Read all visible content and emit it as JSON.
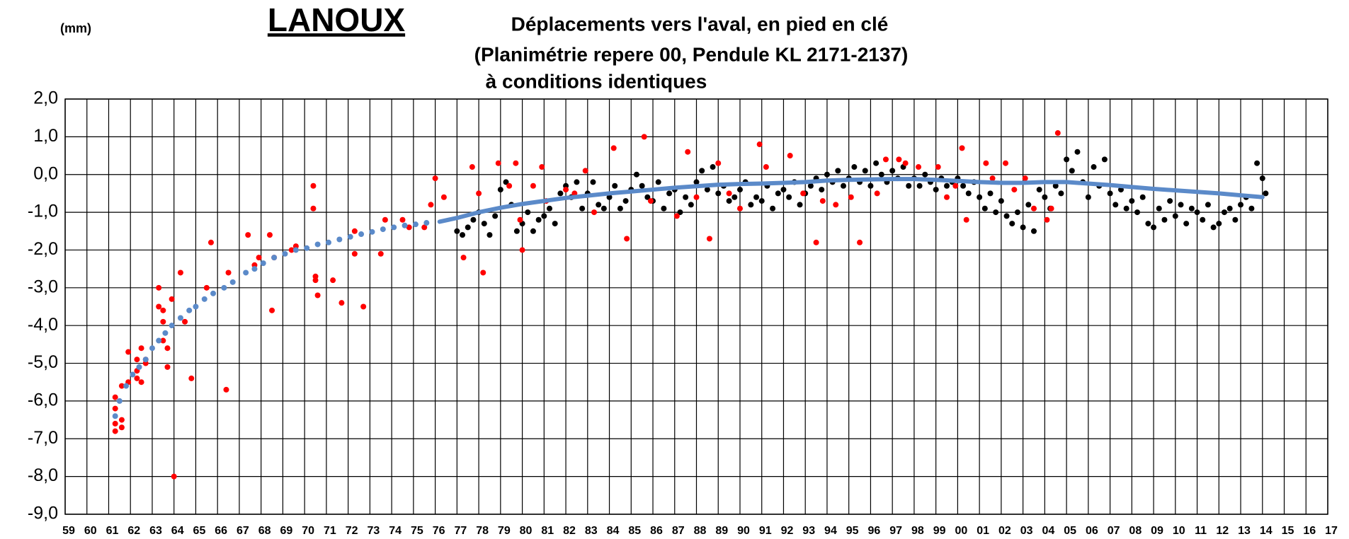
{
  "chart_data": {
    "type": "scatter",
    "title": "LANOUX",
    "subtitle": [
      "Déplacements vers l'aval, en pied en clé",
      "(Planimétrie repere 00, Pendule KL 2171-2137)",
      "à conditions identiques"
    ],
    "ylabel": "(mm)",
    "xlim": [
      1959,
      2017
    ],
    "ylim": [
      -9,
      2
    ],
    "grid": true,
    "yticks": [
      {
        "value": 2,
        "label": "2,0"
      },
      {
        "value": 1,
        "label": "1,0"
      },
      {
        "value": 0,
        "label": "0,0"
      },
      {
        "value": -1,
        "label": "-1,0"
      },
      {
        "value": -2,
        "label": "-2,0"
      },
      {
        "value": -3,
        "label": "-3,0"
      },
      {
        "value": -4,
        "label": "-4,0"
      },
      {
        "value": -5,
        "label": "-5,0"
      },
      {
        "value": -6,
        "label": "-6,0"
      },
      {
        "value": -7,
        "label": "-7,0"
      },
      {
        "value": -8,
        "label": "-8,0"
      },
      {
        "value": -9,
        "label": "-9,0"
      }
    ],
    "xticks": [
      {
        "value": 1959,
        "label": "59"
      },
      {
        "value": 1960,
        "label": "60"
      },
      {
        "value": 1961,
        "label": "61"
      },
      {
        "value": 1962,
        "label": "62"
      },
      {
        "value": 1963,
        "label": "63"
      },
      {
        "value": 1964,
        "label": "64"
      },
      {
        "value": 1965,
        "label": "65"
      },
      {
        "value": 1966,
        "label": "66"
      },
      {
        "value": 1967,
        "label": "67"
      },
      {
        "value": 1968,
        "label": "68"
      },
      {
        "value": 1969,
        "label": "69"
      },
      {
        "value": 1970,
        "label": "70"
      },
      {
        "value": 1971,
        "label": "71"
      },
      {
        "value": 1972,
        "label": "72"
      },
      {
        "value": 1973,
        "label": "73"
      },
      {
        "value": 1974,
        "label": "74"
      },
      {
        "value": 1975,
        "label": "75"
      },
      {
        "value": 1976,
        "label": "76"
      },
      {
        "value": 1977,
        "label": "77"
      },
      {
        "value": 1978,
        "label": "78"
      },
      {
        "value": 1979,
        "label": "79"
      },
      {
        "value": 1980,
        "label": "80"
      },
      {
        "value": 1981,
        "label": "81"
      },
      {
        "value": 1982,
        "label": "82"
      },
      {
        "value": 1983,
        "label": "83"
      },
      {
        "value": 1984,
        "label": "84"
      },
      {
        "value": 1985,
        "label": "85"
      },
      {
        "value": 1986,
        "label": "86"
      },
      {
        "value": 1987,
        "label": "87"
      },
      {
        "value": 1988,
        "label": "88"
      },
      {
        "value": 1989,
        "label": "89"
      },
      {
        "value": 1990,
        "label": "90"
      },
      {
        "value": 1991,
        "label": "91"
      },
      {
        "value": 1992,
        "label": "92"
      },
      {
        "value": 1993,
        "label": "93"
      },
      {
        "value": 1994,
        "label": "94"
      },
      {
        "value": 1995,
        "label": "95"
      },
      {
        "value": 1996,
        "label": "96"
      },
      {
        "value": 1997,
        "label": "97"
      },
      {
        "value": 1998,
        "label": "98"
      },
      {
        "value": 1999,
        "label": "99"
      },
      {
        "value": 2000,
        "label": "00"
      },
      {
        "value": 2001,
        "label": "01"
      },
      {
        "value": 2002,
        "label": "02"
      },
      {
        "value": 2003,
        "label": "03"
      },
      {
        "value": 2004,
        "label": "04"
      },
      {
        "value": 2005,
        "label": "05"
      },
      {
        "value": 2006,
        "label": "06"
      },
      {
        "value": 2007,
        "label": "07"
      },
      {
        "value": 2008,
        "label": "08"
      },
      {
        "value": 2009,
        "label": "09"
      },
      {
        "value": 2010,
        "label": "10"
      },
      {
        "value": 2011,
        "label": "11"
      },
      {
        "value": 2012,
        "label": "12"
      },
      {
        "value": 2013,
        "label": "13"
      },
      {
        "value": 2014,
        "label": "14"
      },
      {
        "value": 2015,
        "label": "15"
      },
      {
        "value": 2016,
        "label": "16"
      },
      {
        "value": 2017,
        "label": "17"
      }
    ],
    "series": [
      {
        "color": "#000000",
        "mode": "markers",
        "x": [
          1977,
          1977.25,
          1977.5,
          1977.75,
          1978,
          1978.25,
          1978.5,
          1978.75,
          1979,
          1979.25,
          1979.5,
          1979.75,
          1980,
          1980.25,
          1980.5,
          1980.75,
          1981,
          1981.25,
          1981.5,
          1981.75,
          1982,
          1982.25,
          1982.5,
          1982.75,
          1983,
          1983.25,
          1983.5,
          1983.75,
          1984,
          1984.25,
          1984.5,
          1984.75,
          1985,
          1985.25,
          1985.5,
          1985.75,
          1986,
          1986.25,
          1986.5,
          1986.75,
          1987,
          1987.25,
          1987.5,
          1987.75,
          1988,
          1988.25,
          1988.5,
          1988.75,
          1989,
          1989.25,
          1989.5,
          1989.75,
          1990,
          1990.25,
          1990.5,
          1990.75,
          1991,
          1991.25,
          1991.5,
          1991.75,
          1992,
          1992.25,
          1992.5,
          1992.75,
          1993,
          1993.25,
          1993.5,
          1993.75,
          1994,
          1994.25,
          1994.5,
          1994.75,
          1995,
          1995.25,
          1995.5,
          1995.75,
          1996,
          1996.25,
          1996.5,
          1996.75,
          1997,
          1997.25,
          1997.5,
          1997.75,
          1998,
          1998.25,
          1998.5,
          1998.75,
          1999,
          1999.25,
          1999.5,
          1999.75,
          2000,
          2000.25,
          2000.5,
          2000.75,
          2001,
          2001.25,
          2001.5,
          2001.75,
          2002,
          2002.25,
          2002.5,
          2002.75,
          2003,
          2003.25,
          2003.5,
          2003.75,
          2004,
          2004.25,
          2004.5,
          2004.75,
          2005,
          2005.25,
          2005.5,
          2005.75,
          2006,
          2006.25,
          2006.5,
          2006.75,
          2007,
          2007.25,
          2007.5,
          2007.75,
          2008,
          2008.25,
          2008.5,
          2008.75,
          2009,
          2009.25,
          2009.5,
          2009.75,
          2010,
          2010.25,
          2010.5,
          2010.75,
          2011,
          2011.25,
          2011.5,
          2011.75,
          2012,
          2012.25,
          2012.5,
          2012.75,
          2013,
          2013.25,
          2013.5,
          2013.75,
          2014,
          2014.15
        ],
        "values": [
          -1.5,
          -1.6,
          -1.4,
          -1.2,
          -1.0,
          -1.3,
          -1.6,
          -1.1,
          -0.4,
          -0.2,
          -0.8,
          -1.5,
          -1.3,
          -1.0,
          -1.5,
          -1.2,
          -1.1,
          -0.9,
          -1.3,
          -0.5,
          -0.3,
          -0.6,
          -0.2,
          -0.9,
          -0.5,
          -0.2,
          -0.8,
          -0.9,
          -0.6,
          -0.3,
          -0.9,
          -0.7,
          -0.4,
          0.0,
          -0.3,
          -0.6,
          -0.7,
          -0.2,
          -0.9,
          -0.5,
          -0.4,
          -1.0,
          -0.6,
          -0.8,
          -0.2,
          0.1,
          -0.4,
          0.2,
          -0.5,
          -0.3,
          -0.7,
          -0.6,
          -0.4,
          -0.2,
          -0.8,
          -0.6,
          -0.7,
          -0.3,
          -0.9,
          -0.5,
          -0.4,
          -0.6,
          -0.2,
          -0.8,
          -0.5,
          -0.3,
          -0.1,
          -0.4,
          0.0,
          -0.2,
          0.1,
          -0.3,
          -0.1,
          0.2,
          -0.2,
          0.1,
          -0.3,
          0.3,
          0.0,
          -0.2,
          0.1,
          -0.1,
          0.2,
          -0.3,
          -0.1,
          -0.3,
          0.0,
          -0.2,
          -0.4,
          -0.1,
          -0.3,
          -0.2,
          -0.1,
          -0.3,
          -0.5,
          -0.2,
          -0.6,
          -0.9,
          -0.5,
          -1.0,
          -0.7,
          -1.1,
          -1.3,
          -1.0,
          -1.4,
          -0.8,
          -1.5,
          -0.4,
          -0.6,
          -0.9,
          -0.3,
          -0.5,
          0.4,
          0.1,
          0.6,
          -0.2,
          -0.6,
          0.2,
          -0.3,
          0.4,
          -0.5,
          -0.8,
          -0.4,
          -0.9,
          -0.7,
          -1.0,
          -0.6,
          -1.3,
          -1.4,
          -0.9,
          -1.2,
          -0.7,
          -1.1,
          -0.8,
          -1.3,
          -0.9,
          -1.0,
          -1.2,
          -0.8,
          -1.4,
          -1.3,
          -1.0,
          -0.9,
          -1.2,
          -0.8,
          -0.6,
          -0.9,
          0.3,
          -0.1,
          -0.5
        ]
      },
      {
        "color": "#ff0000",
        "mode": "markers",
        "x": [
          1961.3,
          1961.3,
          1961.3,
          1961.3,
          1961.6,
          1961.6,
          1961.6,
          1961.9,
          1961.9,
          1962.3,
          1962.3,
          1962.3,
          1962.5,
          1962.5,
          1962.7,
          1962.7,
          1963.3,
          1963.3,
          1963.5,
          1963.5,
          1963.5,
          1963.7,
          1963.7,
          1963.9,
          1964.0,
          1964.3,
          1964.5,
          1964.8,
          1965.5,
          1965.7,
          1966.4,
          1966.5,
          1967.4,
          1967.7,
          1967.9,
          1968.4,
          1968.5,
          1968.6,
          1969.4,
          1969.6,
          1970.4,
          1970.4,
          1970.5,
          1970.5,
          1970.6,
          1971.3,
          1971.7,
          1972.3,
          1972.3,
          1972.7,
          1973.5,
          1973.7,
          1974.5,
          1974.8,
          1975.5,
          1975.8,
          1976.0,
          1976.4,
          1977.3,
          1977.7,
          1978.0,
          1978.2,
          1978.9,
          1979.4,
          1979.7,
          1979.9,
          1980.0,
          1980.5,
          1980.9,
          1981.1,
          1982.0,
          1982.4,
          1982.9,
          1983.3,
          1984.2,
          1984.8,
          1985.6,
          1985.9,
          1987.1,
          1987.6,
          1988.0,
          1988.6,
          1989.0,
          1989.5,
          1990.0,
          1990.9,
          1991.2,
          1992.3,
          1992.9,
          1993.5,
          1993.8,
          1994.4,
          1995.1,
          1995.5,
          1996.3,
          1996.7,
          1997.3,
          1997.6,
          1998.2,
          1999.1,
          1999.5,
          1999.9,
          2000.2,
          2000.4,
          2001.3,
          2001.6,
          2002.2,
          2002.6,
          2003.1,
          2003.5,
          2004.1,
          2004.3,
          2004.6
        ],
        "values": [
          -5.9,
          -6.2,
          -6.8,
          -6.6,
          -6.5,
          -5.6,
          -6.7,
          -4.7,
          -5.5,
          -4.9,
          -5.2,
          -5.4,
          -4.6,
          -5.5,
          -5.0,
          -4.9,
          -3.0,
          -3.5,
          -3.9,
          -3.6,
          -4.4,
          -4.6,
          -5.1,
          -3.3,
          -8.0,
          -2.6,
          -3.9,
          -5.4,
          -3.0,
          -1.8,
          -5.7,
          -2.6,
          -1.6,
          -2.4,
          -2.2,
          -1.6,
          -3.6,
          -2.2,
          -2.0,
          -1.9,
          -0.3,
          -0.9,
          -2.8,
          -2.7,
          -3.2,
          -2.8,
          -3.4,
          -2.1,
          -1.5,
          -3.5,
          -2.1,
          -1.2,
          -1.2,
          -1.4,
          -1.4,
          -0.8,
          -0.1,
          -0.6,
          -2.2,
          0.2,
          -0.5,
          -2.6,
          0.3,
          -0.3,
          0.3,
          -1.2,
          -2.0,
          -0.3,
          0.2,
          -0.7,
          -0.4,
          -0.5,
          0.1,
          -1.0,
          0.7,
          -1.7,
          1.0,
          -0.7,
          -1.1,
          0.6,
          -0.6,
          -1.7,
          0.3,
          -0.5,
          -0.9,
          0.8,
          0.2,
          0.5,
          -0.5,
          -1.8,
          -0.7,
          -0.8,
          -0.6,
          -1.8,
          -0.5,
          0.4,
          0.4,
          0.3,
          0.2,
          0.2,
          -0.6,
          -0.3,
          0.7,
          -1.2,
          0.3,
          -0.1,
          0.3,
          -0.4,
          -0.1,
          -0.9,
          -1.2,
          -0.9,
          1.1
        ]
      },
      {
        "color": "#5b8ac9",
        "mode": "markers",
        "x": [
          1961.3,
          1961.5,
          1961.8,
          1962.1,
          1962.4,
          1962.7,
          1963.0,
          1963.3,
          1963.6,
          1963.9,
          1964.3,
          1964.7,
          1965.0,
          1965.4,
          1965.8,
          1966.3,
          1966.7,
          1967.3,
          1967.7,
          1968.1,
          1968.6,
          1969.1,
          1969.6,
          1970.1,
          1970.6,
          1971.1,
          1971.6,
          1972.1,
          1972.6,
          1973.1,
          1973.6,
          1974.1,
          1974.6,
          1975.1,
          1975.6
        ],
        "values": [
          -6.4,
          -6.0,
          -5.6,
          -5.3,
          -5.1,
          -4.9,
          -4.6,
          -4.4,
          -4.2,
          -4.0,
          -3.8,
          -3.6,
          -3.5,
          -3.3,
          -3.15,
          -3.0,
          -2.85,
          -2.6,
          -2.5,
          -2.35,
          -2.2,
          -2.1,
          -2.0,
          -1.95,
          -1.85,
          -1.8,
          -1.72,
          -1.65,
          -1.58,
          -1.52,
          -1.45,
          -1.4,
          -1.35,
          -1.32,
          -1.28
        ]
      },
      {
        "color": "#5b8ac9",
        "mode": "line",
        "x": [
          1976.2,
          1977,
          1978,
          1979,
          1980,
          1981,
          1982,
          1983,
          1984,
          1985,
          1986,
          1987,
          1988,
          1989,
          1990,
          1991,
          1992,
          1993,
          1994,
          1995,
          1996,
          1997,
          1998,
          1999,
          2000,
          2001,
          2002,
          2003,
          2004,
          2005,
          2006,
          2007,
          2008,
          2009,
          2010,
          2011,
          2012,
          2013,
          2014
        ],
        "values": [
          -1.25,
          -1.15,
          -1.0,
          -0.88,
          -0.78,
          -0.7,
          -0.62,
          -0.56,
          -0.5,
          -0.45,
          -0.4,
          -0.35,
          -0.31,
          -0.27,
          -0.25,
          -0.24,
          -0.22,
          -0.2,
          -0.16,
          -0.14,
          -0.13,
          -0.12,
          -0.12,
          -0.14,
          -0.17,
          -0.2,
          -0.22,
          -0.22,
          -0.2,
          -0.2,
          -0.24,
          -0.28,
          -0.33,
          -0.38,
          -0.42,
          -0.46,
          -0.5,
          -0.55,
          -0.6
        ]
      }
    ]
  }
}
